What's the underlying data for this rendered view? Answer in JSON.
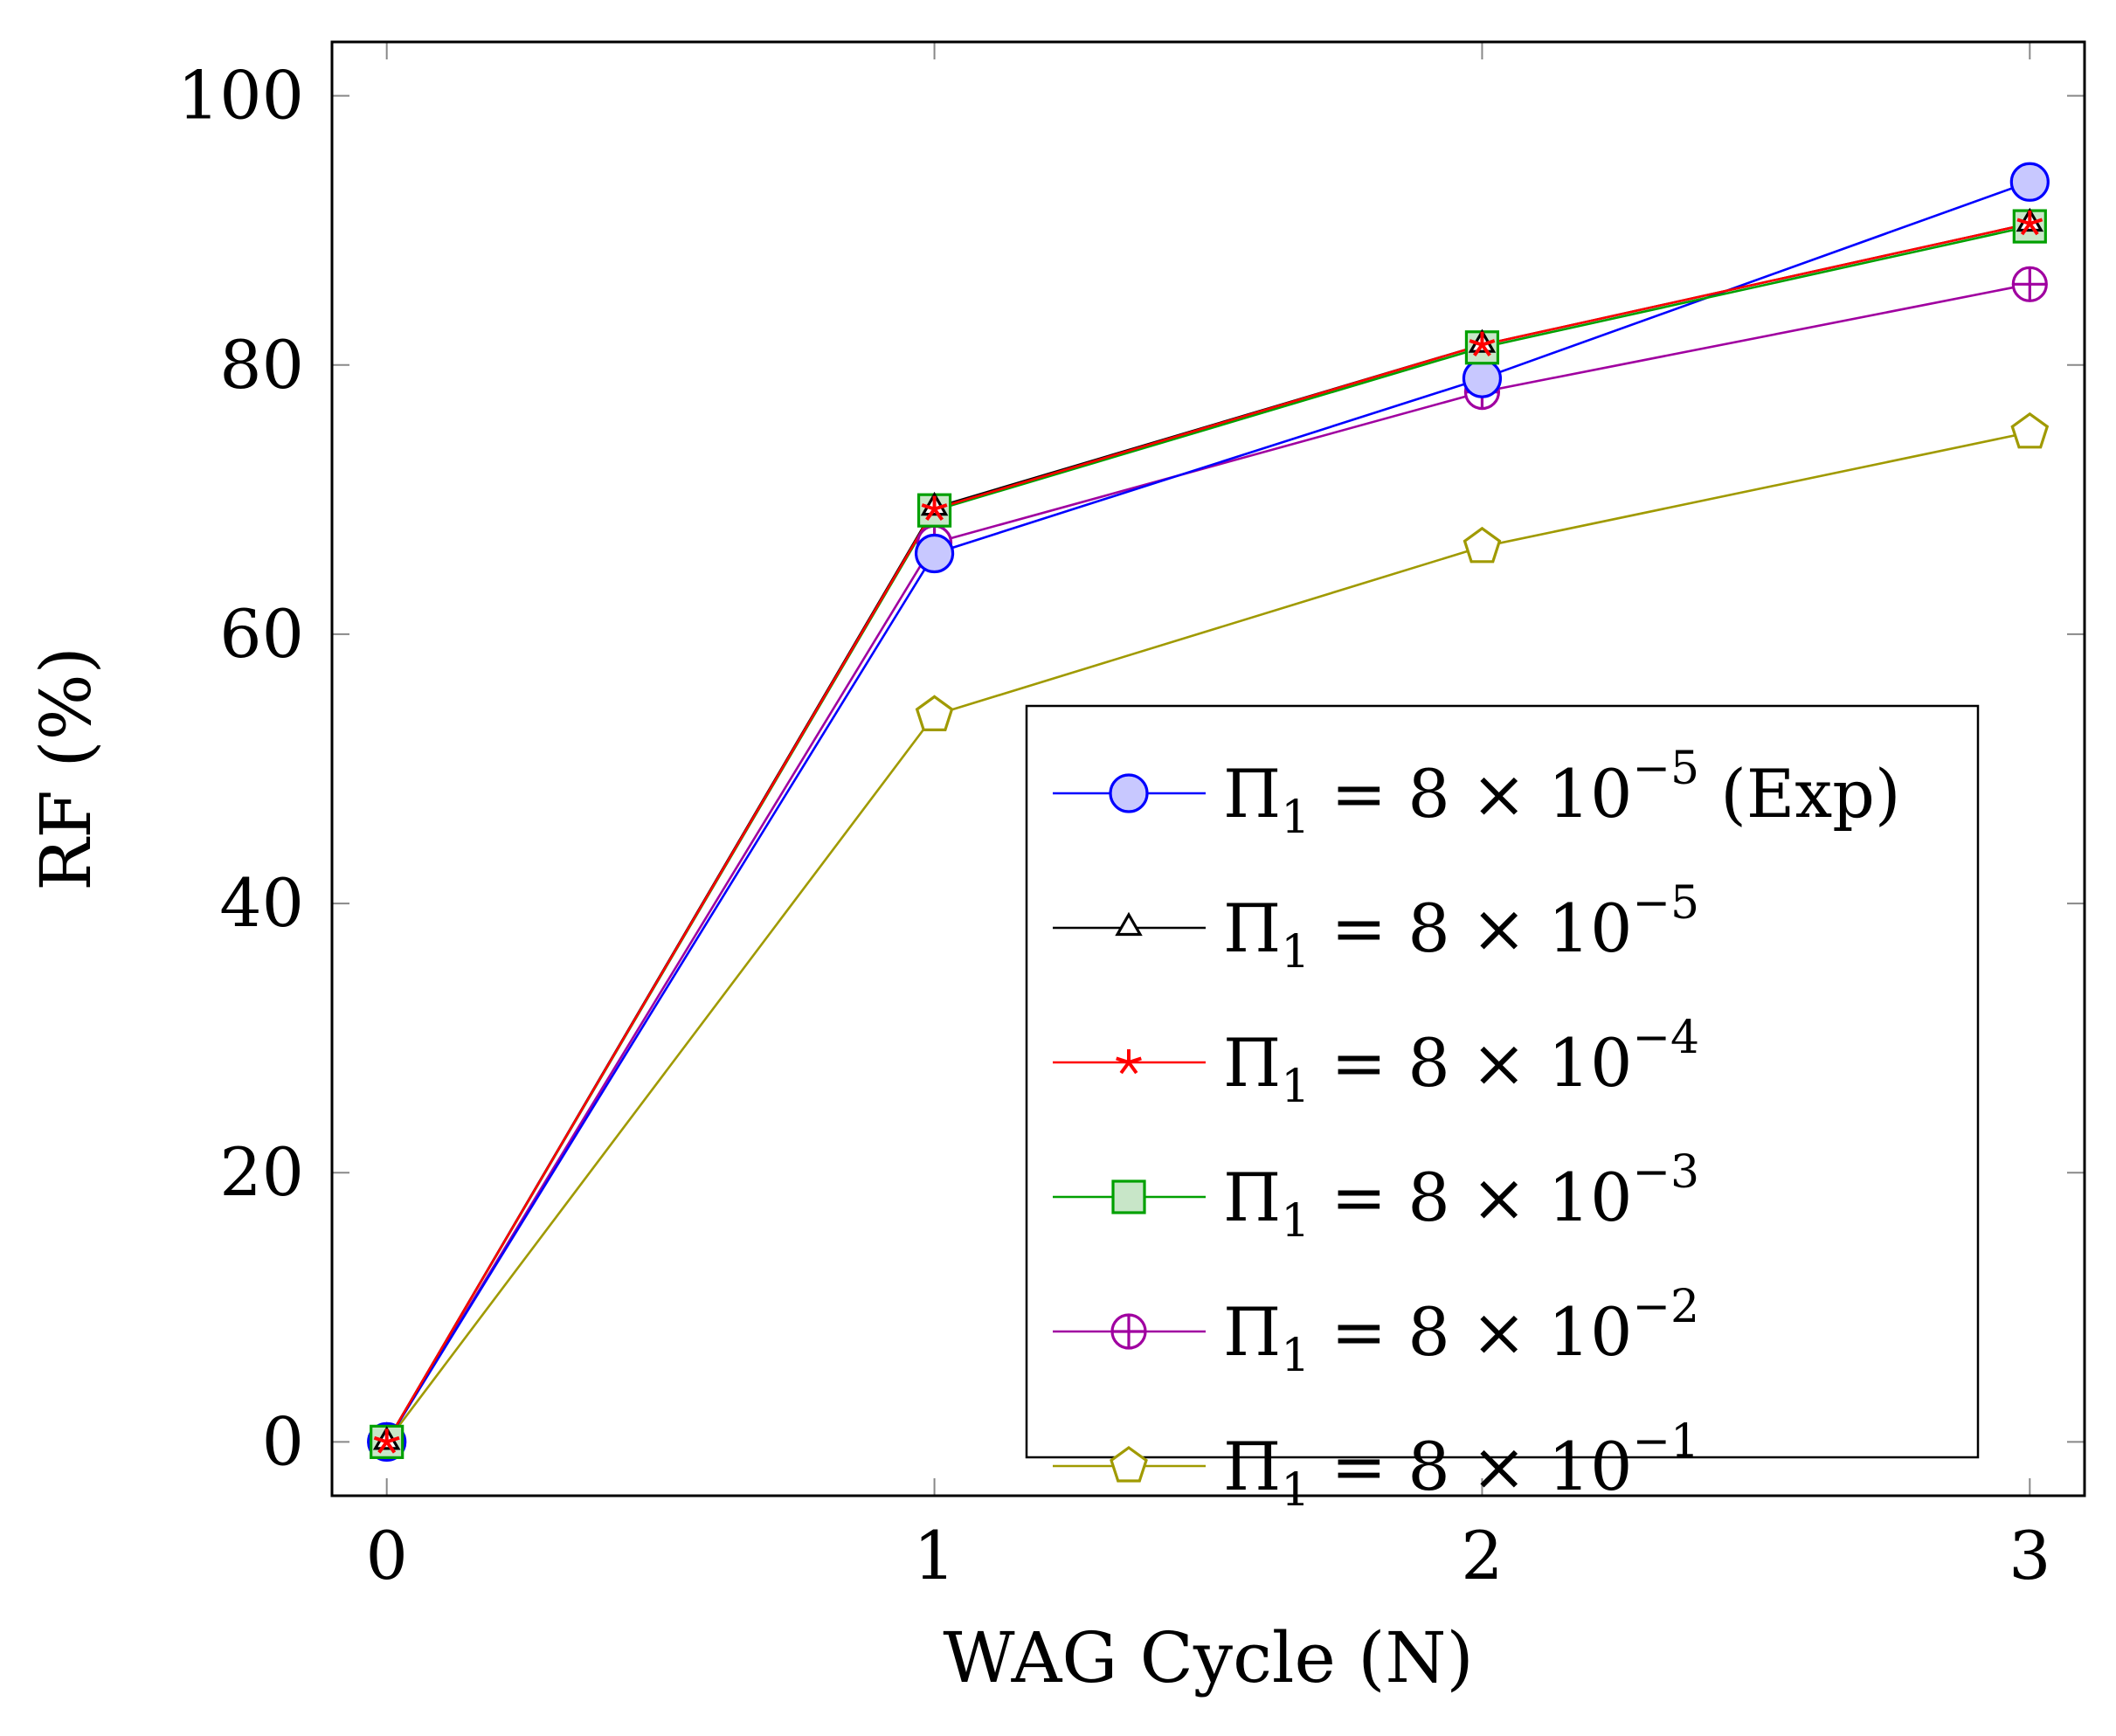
{
  "chart_data": {
    "type": "line",
    "title": "",
    "xlabel": "WAG Cycle (N)",
    "ylabel": "RF (%)",
    "xlim": [
      -0.1,
      3.1
    ],
    "ylim": [
      -4,
      104
    ],
    "xticks": [
      0,
      1,
      2,
      3
    ],
    "xtick_labels": [
      "0",
      "1",
      "2",
      "3"
    ],
    "yticks": [
      0,
      20,
      40,
      60,
      80,
      100
    ],
    "ytick_labels": [
      "0",
      "20",
      "40",
      "60",
      "80",
      "100"
    ],
    "grid": false,
    "legend_position": "bottom-right",
    "x": [
      0,
      1,
      2,
      3
    ],
    "series": [
      {
        "name": "Π1 = 8 × 10−5 (Exp)",
        "base": "Π",
        "sub": "1",
        "eq": " = 8 × 10",
        "exp": "−5",
        "suffix": " (Exp)",
        "values": [
          0,
          66,
          79,
          93.6
        ],
        "color": "#0000ff",
        "fill": "#c8c8ff",
        "marker": "circle"
      },
      {
        "name": "Π1 = 8 × 10−5",
        "base": "Π",
        "sub": "1",
        "eq": " = 8 × 10",
        "exp": "−5",
        "suffix": "",
        "values": [
          0,
          69.4,
          81.5,
          90.5
        ],
        "color": "#000000",
        "fill": "#ffffff",
        "marker": "triangle"
      },
      {
        "name": "Π1 = 8 × 10−4",
        "base": "Π",
        "sub": "1",
        "eq": " = 8 × 10",
        "exp": "−4",
        "suffix": "",
        "values": [
          0,
          69.3,
          81.5,
          90.5
        ],
        "color": "#ff0000",
        "fill": "#ff0000",
        "marker": "star"
      },
      {
        "name": "Π1 = 8 × 10−3",
        "base": "Π",
        "sub": "1",
        "eq": " = 8 × 10",
        "exp": "−3",
        "suffix": "",
        "values": [
          0,
          69.2,
          81.3,
          90.3
        ],
        "color": "#00a000",
        "fill": "#c8e6c8",
        "marker": "square"
      },
      {
        "name": "Π1 = 8 × 10−2",
        "base": "Π",
        "sub": "1",
        "eq": " = 8 × 10",
        "exp": "−2",
        "suffix": "",
        "values": [
          0,
          66.8,
          78,
          86
        ],
        "color": "#a000a0",
        "fill": "#ffffff",
        "marker": "oplus"
      },
      {
        "name": "Π1 = 8 × 10−1",
        "base": "Π",
        "sub": "1",
        "eq": " = 8 × 10",
        "exp": "−1",
        "suffix": "",
        "values": [
          0,
          54,
          66.5,
          75
        ],
        "color": "#a09a00",
        "fill": "#ffffff",
        "marker": "pentagon"
      }
    ]
  }
}
